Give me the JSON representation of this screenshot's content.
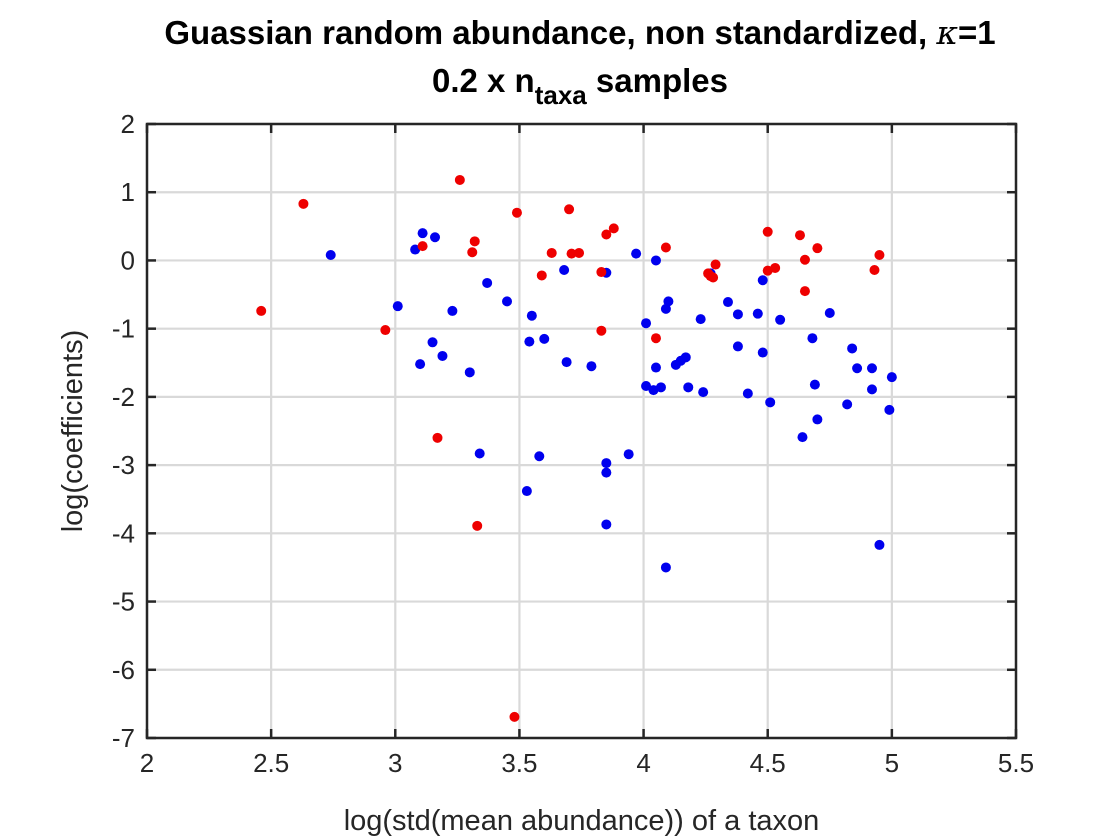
{
  "chart_data": {
    "type": "scatter",
    "title_main": "Guassian random abundance, non standardized, ",
    "title_symbol": "κ",
    "title_suffix": "=1",
    "subtitle_prefix": "0.2 x n",
    "subtitle_subscript": "taxa",
    "subtitle_suffix": " samples",
    "xlabel": "log(std(mean abundance)) of a taxon",
    "ylabel": "log(coefficients)",
    "xlim": [
      2,
      5.5
    ],
    "ylim": [
      -7,
      2
    ],
    "xticks": [
      "2",
      "2.5",
      "3",
      "3.5",
      "4",
      "4.5",
      "5",
      "5.5"
    ],
    "yticks": [
      "2",
      "1",
      "0",
      "-1",
      "-2",
      "-3",
      "-4",
      "-5",
      "-6",
      "-7"
    ],
    "grid": true,
    "series": [
      {
        "color": "#0000ee",
        "x": [
          2.74,
          3.01,
          3.08,
          3.1,
          3.11,
          3.15,
          3.16,
          3.19,
          3.23,
          3.3,
          3.34,
          3.37,
          3.45,
          3.53,
          3.54,
          3.55,
          3.58,
          3.6,
          3.68,
          3.69,
          3.79,
          3.85,
          3.85,
          3.85,
          3.85,
          3.94,
          3.97,
          4.01,
          4.01,
          4.04,
          4.05,
          4.05,
          4.07,
          4.09,
          4.09,
          4.1,
          4.13,
          4.15,
          4.17,
          4.18,
          4.23,
          4.24,
          4.27,
          4.34,
          4.38,
          4.38,
          4.42,
          4.46,
          4.48,
          4.48,
          4.51,
          4.55,
          4.64,
          4.68,
          4.69,
          4.7,
          4.75,
          4.82,
          4.84,
          4.86,
          4.92,
          4.92,
          4.95,
          4.99,
          5.0
        ],
        "y": [
          0.08,
          -0.67,
          0.16,
          -1.52,
          0.4,
          -1.2,
          0.34,
          -1.4,
          -0.74,
          -1.64,
          -2.83,
          -0.33,
          -0.6,
          -3.38,
          -1.19,
          -0.81,
          -2.87,
          -1.15,
          -0.14,
          -1.49,
          -1.55,
          -3.87,
          -2.97,
          -3.11,
          -0.18,
          -2.84,
          0.1,
          -0.92,
          -1.84,
          -1.9,
          -1.57,
          0.0,
          -1.86,
          -0.71,
          -4.5,
          -0.6,
          -1.53,
          -1.47,
          -1.42,
          -1.86,
          -0.86,
          -1.93,
          -0.19,
          -0.61,
          -1.26,
          -0.79,
          -1.95,
          -0.78,
          -1.35,
          -0.29,
          -2.08,
          -0.87,
          -2.59,
          -1.14,
          -1.82,
          -2.33,
          -0.77,
          -2.11,
          -1.29,
          -1.58,
          -1.58,
          -1.89,
          -4.17,
          -2.19,
          -1.71
        ]
      },
      {
        "color": "#ee0000",
        "x": [
          2.46,
          2.63,
          2.96,
          3.11,
          3.17,
          3.26,
          3.31,
          3.32,
          3.33,
          3.48,
          3.49,
          3.59,
          3.63,
          3.7,
          3.71,
          3.74,
          3.83,
          3.83,
          3.85,
          3.88,
          4.05,
          4.09,
          4.26,
          4.27,
          4.28,
          4.29,
          4.5,
          4.5,
          4.53,
          4.63,
          4.65,
          4.65,
          4.7,
          4.93,
          4.95
        ],
        "y": [
          -0.74,
          0.83,
          -1.02,
          0.21,
          -2.6,
          1.18,
          0.12,
          0.28,
          -3.89,
          -6.69,
          0.7,
          -0.22,
          0.11,
          0.75,
          0.1,
          0.11,
          -0.17,
          -1.03,
          0.38,
          0.47,
          -1.14,
          0.19,
          -0.19,
          -0.23,
          -0.25,
          -0.06,
          0.42,
          -0.15,
          -0.11,
          0.37,
          0.01,
          -0.45,
          0.18,
          -0.14,
          0.08
        ]
      }
    ]
  }
}
